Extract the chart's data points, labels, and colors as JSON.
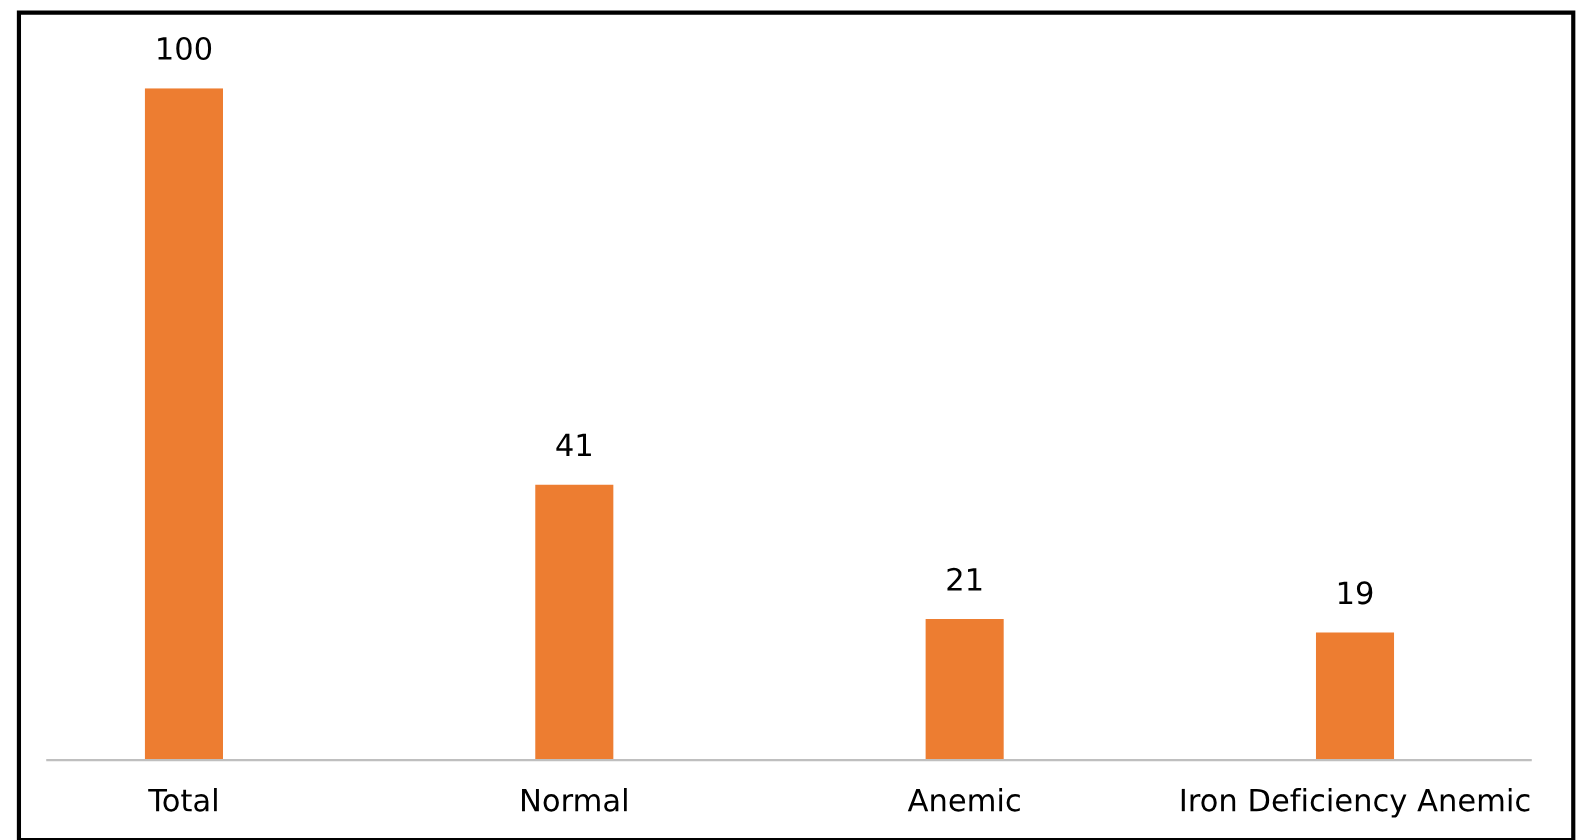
{
  "chart_data": {
    "type": "bar",
    "categories": [
      "Total",
      "Normal",
      "Anemic",
      "Iron Deficiency Anemic"
    ],
    "values": [
      100,
      41,
      21,
      19
    ],
    "color": "#ed7d31",
    "data_labels": true,
    "grid": false,
    "legend": false
  }
}
